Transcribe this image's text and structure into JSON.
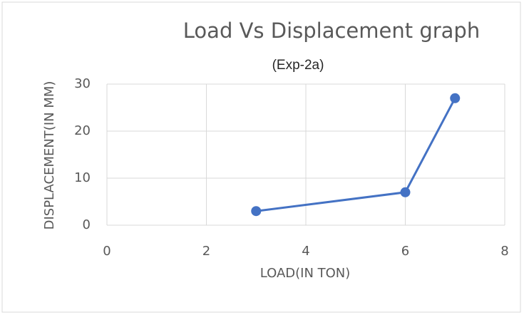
{
  "chart_data": {
    "type": "line",
    "title": "Load Vs Displacement graph",
    "subtitle": "(Exp-2a)",
    "x_label": "LOAD(IN TON)",
    "y_label": "DISPLACEMENT(IN MM)",
    "x": [
      3,
      6,
      7
    ],
    "values": [
      3,
      7,
      27
    ],
    "color": "#4472c4",
    "xlim": [
      0,
      8
    ],
    "xticks": [
      0,
      2,
      4,
      6,
      8
    ],
    "ylim": [
      0,
      30
    ],
    "yticks": [
      0,
      10,
      20,
      30
    ],
    "grid": true
  }
}
